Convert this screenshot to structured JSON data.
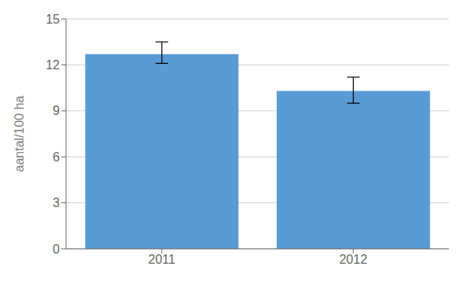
{
  "chart_data": {
    "type": "bar",
    "categories": [
      "2011",
      "2012"
    ],
    "values": [
      12.7,
      10.3
    ],
    "errors_lower": [
      0.6,
      0.8
    ],
    "errors_upper": [
      0.8,
      0.9
    ],
    "color": "#5b9bd5",
    "ylabel": "aantal/100 ha",
    "ylim": [
      0,
      15
    ],
    "yticks": [
      0,
      3,
      6,
      9,
      12,
      15
    ],
    "grid": true
  }
}
